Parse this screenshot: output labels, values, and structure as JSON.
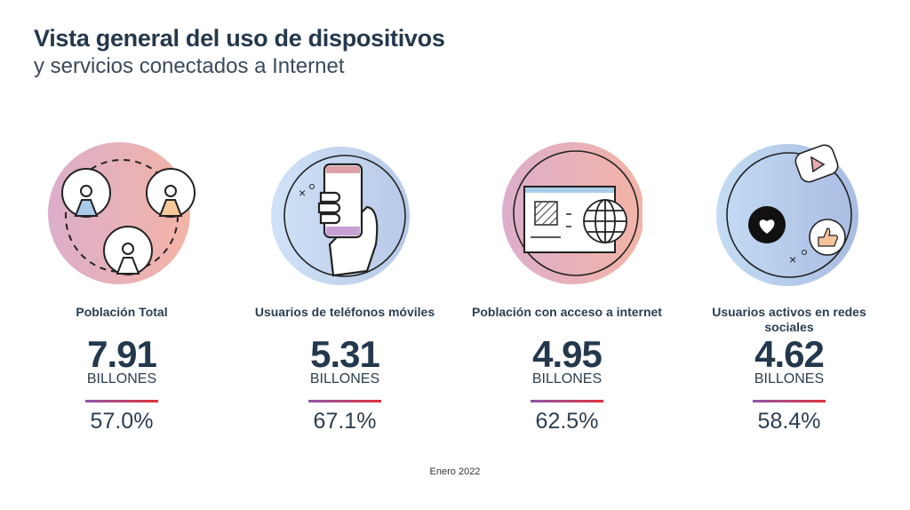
{
  "header": {
    "title": "Vista general del uso de dispositivos",
    "subtitle": "y servicios conectados a Internet"
  },
  "stats": [
    {
      "label": "Población Total",
      "value": "7.91",
      "unit": "BILLONES",
      "percent": "57.0%",
      "icon": "people-network-icon"
    },
    {
      "label": "Usuarios de teléfonos móviles",
      "value": "5.31",
      "unit": "BILLONES",
      "percent": "67.1%",
      "icon": "hand-holding-phone-icon"
    },
    {
      "label": "Población con acceso a internet",
      "value": "4.95",
      "unit": "BILLONES",
      "percent": "62.5%",
      "icon": "browser-globe-icon"
    },
    {
      "label": "Usuarios activos en redes sociales",
      "value": "4.62",
      "unit": "BILLONES",
      "percent": "58.4%",
      "icon": "social-media-icon"
    }
  ],
  "colors": {
    "text": "#24384d",
    "rule_start": "#8e55a8",
    "rule_end": "#e0303a",
    "pink_circle": "#e9a9b4",
    "blue_circle": "#c5d8ef"
  },
  "footer": "Enero 2022"
}
